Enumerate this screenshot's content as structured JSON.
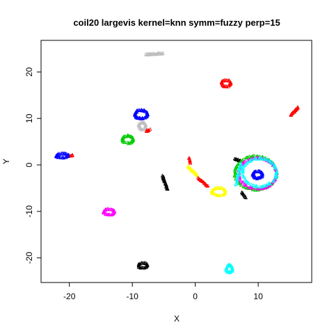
{
  "chart_data": {
    "type": "scatter",
    "title": "coil20 largevis kernel=knn symm=fuzzy perp=15",
    "xlabel": "X",
    "ylabel": "Y",
    "xlim": [
      -24.5,
      18.5
    ],
    "ylim": [
      -25.3,
      26.8
    ],
    "xticks": [
      -20,
      -10,
      0,
      10
    ],
    "yticks": [
      -20,
      -10,
      0,
      10,
      20
    ],
    "grid": false,
    "legend": "none",
    "clusters": [
      {
        "color": "#ff0000",
        "kind": "arc",
        "cx": 4.9,
        "cy": 17.6,
        "rx": 0.7,
        "ry": 0.7,
        "n": 40
      },
      {
        "color": "#ff0000",
        "kind": "line",
        "x1": 15.2,
        "y1": 10.8,
        "x2": 16.3,
        "y2": 12.4,
        "n": 30
      },
      {
        "color": "#0000ff",
        "kind": "arc",
        "cx": -8.6,
        "cy": 10.9,
        "rx": 1.0,
        "ry": 0.9,
        "n": 70
      },
      {
        "color": "#0000ff",
        "kind": "arc",
        "cx": -21.1,
        "cy": 2.0,
        "rx": 1.0,
        "ry": 0.45,
        "n": 50
      },
      {
        "color": "#0000ff",
        "kind": "arc",
        "cx": 9.9,
        "cy": -2.1,
        "rx": 0.75,
        "ry": 0.75,
        "n": 55
      },
      {
        "color": "#00cc00",
        "kind": "arc",
        "cx": -10.7,
        "cy": 5.5,
        "rx": 0.85,
        "ry": 0.8,
        "n": 55
      },
      {
        "color": "#ff00ff",
        "kind": "arc",
        "cx": -13.7,
        "cy": -10.1,
        "rx": 0.85,
        "ry": 0.6,
        "n": 50
      },
      {
        "color": "#bebebe",
        "kind": "line",
        "x1": -7.8,
        "y1": 23.8,
        "x2": -5.2,
        "y2": 24.0,
        "n": 45
      },
      {
        "color": "#bebebe",
        "kind": "arc",
        "cx": -8.4,
        "cy": 8.4,
        "rx": 0.55,
        "ry": 0.75,
        "n": 40
      },
      {
        "color": "#000000",
        "kind": "arc",
        "cx": -8.3,
        "cy": -21.6,
        "rx": 0.7,
        "ry": 0.55,
        "n": 40
      },
      {
        "color": "#000000",
        "kind": "line",
        "x1": -5.2,
        "y1": -2.3,
        "x2": -4.4,
        "y2": -5.3,
        "n": 35
      },
      {
        "color": "#000000",
        "kind": "line",
        "x1": 6.3,
        "y1": 1.3,
        "x2": 7.2,
        "y2": 0.9,
        "n": 15
      },
      {
        "color": "#000000",
        "kind": "line",
        "x1": 7.4,
        "y1": -5.8,
        "x2": 8.0,
        "y2": -7.0,
        "n": 15
      },
      {
        "color": "#00ffff",
        "kind": "arc",
        "cx": 5.4,
        "cy": -22.3,
        "rx": 0.5,
        "ry": 0.8,
        "n": 40
      },
      {
        "color": "#ffff00",
        "kind": "arc",
        "cx": 3.7,
        "cy": -5.7,
        "rx": 1.1,
        "ry": 0.8,
        "n": 50
      },
      {
        "color": "#ffff00",
        "kind": "line",
        "x1": -1.2,
        "y1": -0.3,
        "x2": 0.4,
        "y2": -2.3,
        "n": 30
      },
      {
        "color": "#ff0000",
        "kind": "line",
        "x1": 0.5,
        "y1": -2.8,
        "x2": 2.0,
        "y2": -4.6,
        "n": 25
      },
      {
        "color": "#ff0000",
        "kind": "line",
        "x1": -1.0,
        "y1": 1.5,
        "x2": -0.8,
        "y2": 0.5,
        "n": 10
      },
      {
        "color": "#ff0000",
        "kind": "line",
        "x1": -7.8,
        "y1": 7.3,
        "x2": -7.2,
        "y2": 7.6,
        "n": 10
      },
      {
        "color": "#ff0000",
        "kind": "line",
        "x1": -19.9,
        "y1": 1.9,
        "x2": -19.4,
        "y2": 2.1,
        "n": 6
      },
      {
        "color": "#00cc00",
        "kind": "arc",
        "cx": 9.6,
        "cy": -1.7,
        "rx": 3.3,
        "ry": 3.6,
        "n": 140
      },
      {
        "color": "#ff00ff",
        "kind": "arc",
        "cx": 9.9,
        "cy": -1.8,
        "rx": 3.0,
        "ry": 3.3,
        "n": 110
      },
      {
        "color": "#00ffff",
        "kind": "arc",
        "cx": 10.2,
        "cy": -1.6,
        "rx": 2.7,
        "ry": 3.0,
        "n": 90
      },
      {
        "color": "#00ffff",
        "kind": "line",
        "x1": 6.5,
        "y1": -4.2,
        "x2": 7.2,
        "y2": 0.3,
        "n": 25
      }
    ]
  }
}
